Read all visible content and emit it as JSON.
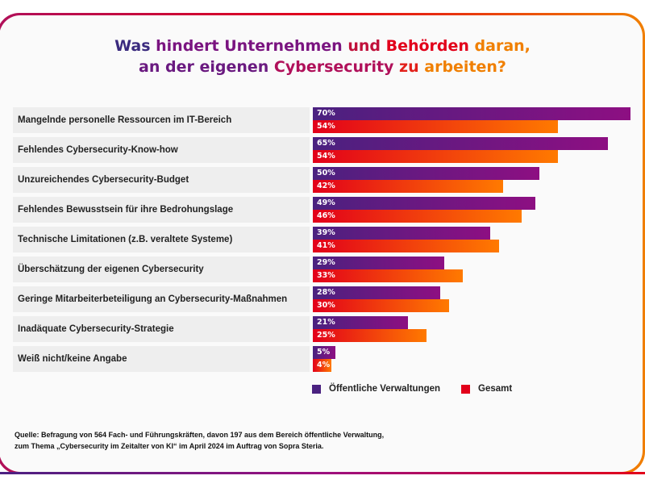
{
  "title": {
    "line1": [
      {
        "t": "Was ",
        "c": "#3a2a7e"
      },
      {
        "t": "hindert Unternehmen ",
        "c": "#7a1480"
      },
      {
        "t": "und ",
        "c": "#c0103a"
      },
      {
        "t": "Behörden ",
        "c": "#e2001a"
      },
      {
        "t": "daran,",
        "c": "#f07f00"
      }
    ],
    "line2": [
      {
        "t": "an der eigenen ",
        "c": "#6a1a80"
      },
      {
        "t": "Cybersecurity ",
        "c": "#b0105a"
      },
      {
        "t": "zu ",
        "c": "#e2201a"
      },
      {
        "t": "arbeiten?",
        "c": "#f07f00"
      }
    ]
  },
  "chart_data": {
    "type": "bar",
    "orientation": "horizontal",
    "categories": [
      "Mangelnde personelle Ressourcen im IT-Bereich",
      "Fehlendes Cybersecurity-Know-how",
      "Unzureichendes Cybersecurity-Budget",
      "Fehlendes Bewusstsein für ihre Bedrohungslage",
      "Technische Limitationen (z.B. veraltete Systeme)",
      "Überschätzung der eigenen Cybersecurity",
      "Geringe Mitarbeiterbeteiligung an Cybersecurity-Maßnahmen",
      "Inadäquate Cybersecurity-Strategie",
      "Weiß nicht/keine Angabe"
    ],
    "series": [
      {
        "name": "Öffentliche Verwaltungen",
        "color": "#4a2180",
        "values": [
          70,
          65,
          50,
          49,
          39,
          29,
          28,
          21,
          5
        ]
      },
      {
        "name": "Gesamt",
        "color": "#e2001a",
        "values": [
          54,
          54,
          42,
          46,
          41,
          33,
          30,
          25,
          4
        ]
      }
    ],
    "unit": "%",
    "xlim": [
      0,
      70
    ],
    "legend": "bottom"
  },
  "source": {
    "line1": "Quelle: Befragung von 564 Fach- und Führungskräften, davon 197 aus dem Bereich öffentliche Verwaltung,",
    "line2": "zum Thema „Cybersecurity im Zeitalter von KI“ im April 2024 im Auftrag von Sopra Steria."
  }
}
